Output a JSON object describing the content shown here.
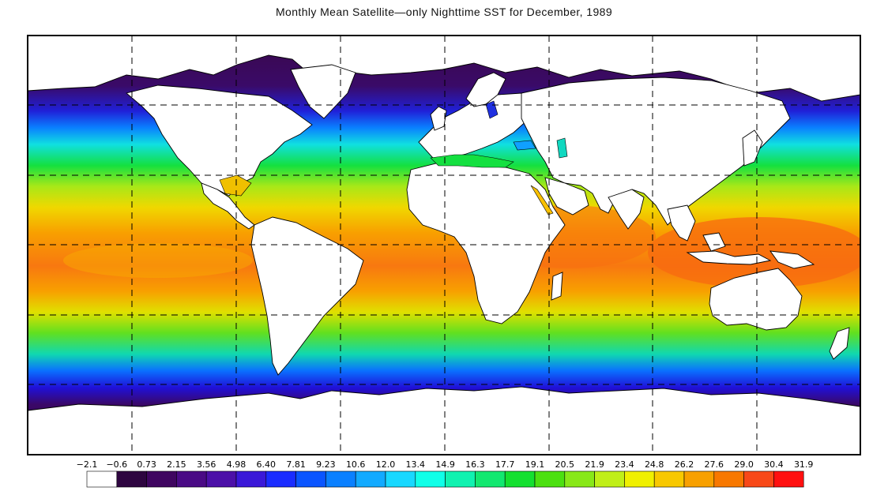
{
  "title": "Monthly Mean Satellite—only Nighttime SST for December, 1989",
  "legend": {
    "labels": [
      "−2.1",
      "−0.6",
      "0.73",
      "2.15",
      "3.56",
      "4.98",
      "6.40",
      "7.81",
      "9.23",
      "10.6",
      "12.0",
      "13.4",
      "14.9",
      "16.3",
      "17.7",
      "19.1",
      "20.5",
      "21.9",
      "23.4",
      "24.8",
      "26.2",
      "27.6",
      "29.0",
      "30.4",
      "31.9"
    ],
    "colors": [
      "#ffffff",
      "#2e0540",
      "#3f0560",
      "#4a0a85",
      "#4c10a8",
      "#3a18d8",
      "#1a2cff",
      "#0a55ff",
      "#0a80ff",
      "#12aaff",
      "#18d8ff",
      "#10ffe8",
      "#10f2b0",
      "#12e870",
      "#14e030",
      "#4ce010",
      "#88e818",
      "#c0ef18",
      "#f0f000",
      "#f8c800",
      "#f8a000",
      "#f87800",
      "#f84818",
      "#ff1010"
    ]
  },
  "map": {
    "ocean_colors_by_latitude": [
      "#3a0848",
      "#3a0a60",
      "#4a10a0",
      "#1530f0",
      "#0a7cff",
      "#10e0e0",
      "#14e040",
      "#9ae818",
      "#f0e000",
      "#f8a000",
      "#f87010",
      "#f87010",
      "#f8a000",
      "#e8e000",
      "#70e018",
      "#10d8a0",
      "#0a70ff",
      "#2814d0",
      "#3a0860",
      "#300040"
    ]
  }
}
